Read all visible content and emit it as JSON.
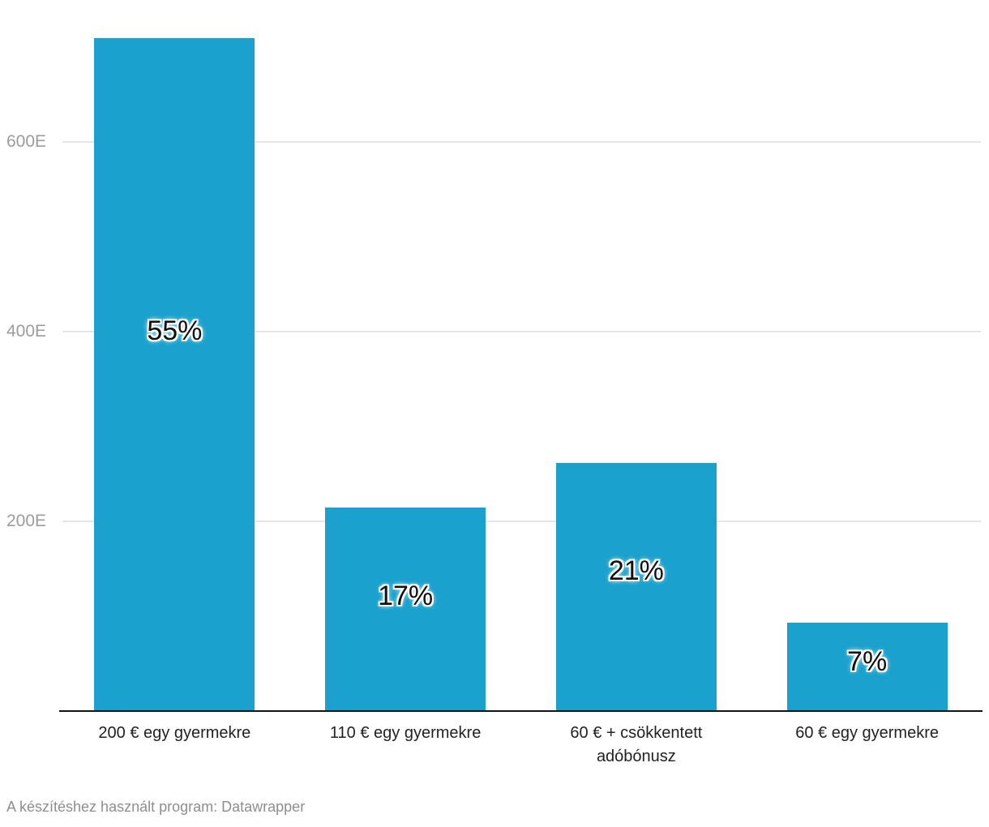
{
  "chart_data": {
    "type": "bar",
    "categories": [
      "200 € egy gyermekre",
      "110 € egy gyermekre",
      "60 € + csökkentett adóbónusz",
      "60 € egy gyermekre"
    ],
    "values": [
      710,
      215,
      262,
      93
    ],
    "value_suffix_meaning": "E = thousands",
    "bar_labels": [
      "55%",
      "17%",
      "21%",
      "7%"
    ],
    "y_ticks": [
      {
        "label": "600E",
        "value": 600
      },
      {
        "label": "400E",
        "value": 400
      },
      {
        "label": "200E",
        "value": 200
      }
    ],
    "ylim": [
      0,
      750
    ],
    "grid": true,
    "legend": "none",
    "title": "",
    "xlabel": "",
    "ylabel": "",
    "colors": {
      "bar": "#1aa1cd",
      "gridline": "#e6e6e6",
      "tick_label": "#9c9c9c",
      "axis_line": "#141414",
      "category_label": "#222222"
    }
  },
  "footer": {
    "text": "A készítéshez használt program: Datawrapper"
  }
}
